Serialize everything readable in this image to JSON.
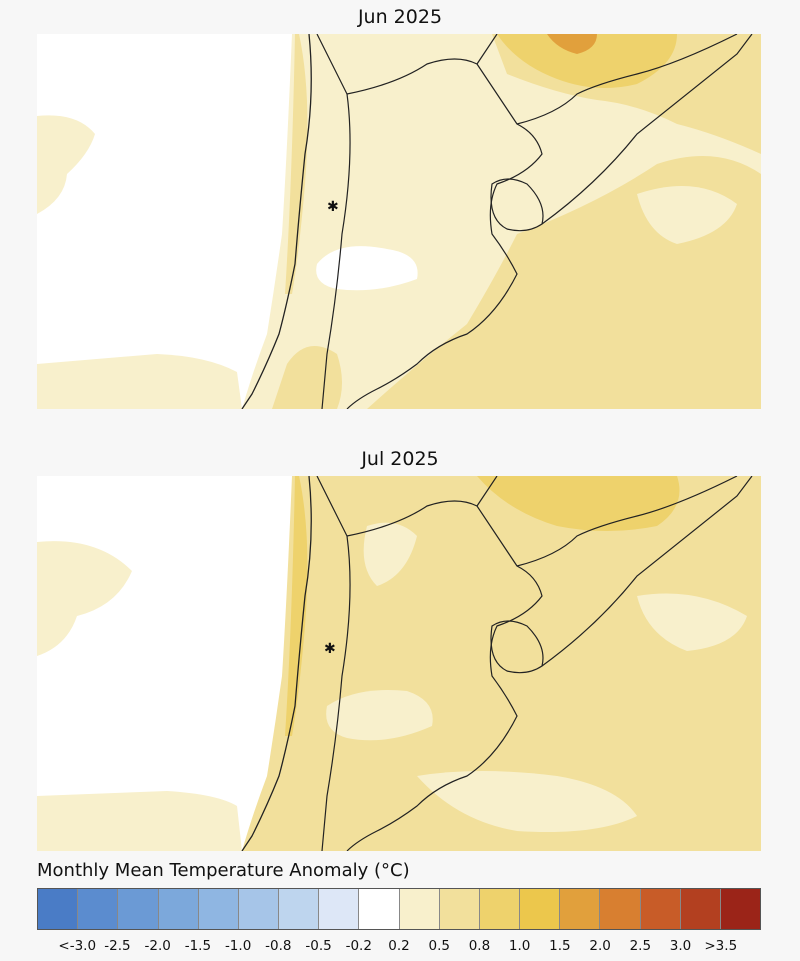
{
  "panels": [
    {
      "title": "Jun 2025"
    },
    {
      "title": "Jul 2025"
    }
  ],
  "legend": {
    "title": "Monthly Mean Temperature Anomaly (°C)",
    "tick_labels": [
      "<-3.0",
      "-2.5",
      "-2.0",
      "-1.5",
      "-1.0",
      "-0.8",
      "-0.5",
      "-0.2",
      "0.2",
      "0.5",
      "0.8",
      "1.0",
      "1.5",
      "2.0",
      "2.5",
      "3.0",
      ">3.5"
    ],
    "colors": [
      "#4a7cc6",
      "#5b8ccf",
      "#6b9ad5",
      "#7ca8db",
      "#8fb6e2",
      "#a6c5e8",
      "#bed5ee",
      "#dde7f7",
      "#ffffff",
      "#f8f0cc",
      "#f2e09c",
      "#eed26c",
      "#ecc74c",
      "#e1a03c",
      "#d87f30",
      "#c85c28",
      "#b34020",
      "#9b2418"
    ]
  },
  "palette": {
    "background": "#f7f7f7",
    "no_anomaly": "#ffffff",
    "light_warm": "#f8f0cc",
    "mid_warm": "#f2e09c",
    "warm": "#eed26c",
    "hot": "#e1a03c"
  }
}
